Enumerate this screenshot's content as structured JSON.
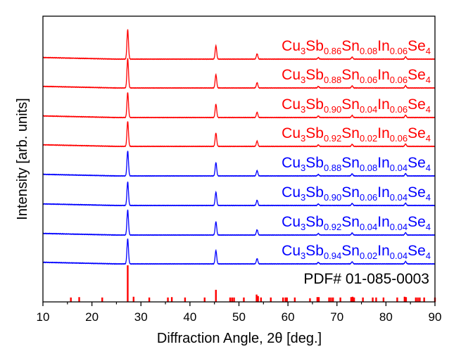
{
  "chart_data": {
    "type": "line",
    "title": "",
    "xlabel": "Diffraction Angle, 2θ [deg.]",
    "ylabel": "Intensity [arb. units]",
    "xlim": [
      10,
      90
    ],
    "xticks": [
      10,
      20,
      30,
      40,
      50,
      60,
      70,
      80,
      90
    ],
    "yticks": [],
    "grid": false,
    "legend": "inline labels right of each trace",
    "peaks_2theta": [
      27.3,
      45.3,
      53.7,
      66.2,
      73.1,
      84.0
    ],
    "peak_relative_intensity": [
      1.0,
      0.45,
      0.18,
      0.05,
      0.07,
      0.08
    ],
    "series": [
      {
        "name": "Cu3Sb0.86Sn0.08In0.06Se4",
        "color": "#ff0000",
        "parts": [
          [
            "Cu",
            ""
          ],
          [
            "3",
            "sub"
          ],
          [
            "Sb",
            ""
          ],
          [
            "0.86",
            "sub"
          ],
          [
            "Sn",
            ""
          ],
          [
            "0.08",
            "sub"
          ],
          [
            "In",
            ""
          ],
          [
            "0.06",
            "sub"
          ],
          [
            "Se",
            ""
          ],
          [
            "4",
            "sub"
          ]
        ],
        "main_peak_height": 1.0
      },
      {
        "name": "Cu3Sb0.88Sn0.06In0.06Se4",
        "color": "#ff0000",
        "parts": [
          [
            "Cu",
            ""
          ],
          [
            "3",
            "sub"
          ],
          [
            "Sb",
            ""
          ],
          [
            "0.88",
            "sub"
          ],
          [
            "Sn",
            ""
          ],
          [
            "0.06",
            "sub"
          ],
          [
            "In",
            ""
          ],
          [
            "0.06",
            "sub"
          ],
          [
            "Se",
            ""
          ],
          [
            "4",
            "sub"
          ]
        ],
        "main_peak_height": 1.0
      },
      {
        "name": "Cu3Sb0.90Sn0.04In0.06Se4",
        "color": "#ff0000",
        "parts": [
          [
            "Cu",
            ""
          ],
          [
            "3",
            "sub"
          ],
          [
            "Sb",
            ""
          ],
          [
            "0.90",
            "sub"
          ],
          [
            "Sn",
            ""
          ],
          [
            "0.04",
            "sub"
          ],
          [
            "In",
            ""
          ],
          [
            "0.06",
            "sub"
          ],
          [
            "Se",
            ""
          ],
          [
            "4",
            "sub"
          ]
        ],
        "main_peak_height": 0.85
      },
      {
        "name": "Cu3Sb0.92Sn0.02In0.06Se4",
        "color": "#ff0000",
        "parts": [
          [
            "Cu",
            ""
          ],
          [
            "3",
            "sub"
          ],
          [
            "Sb",
            ""
          ],
          [
            "0.92",
            "sub"
          ],
          [
            "Sn",
            ""
          ],
          [
            "0.02",
            "sub"
          ],
          [
            "In",
            ""
          ],
          [
            "0.06",
            "sub"
          ],
          [
            "Se",
            ""
          ],
          [
            "4",
            "sub"
          ]
        ],
        "main_peak_height": 0.85
      },
      {
        "name": "Cu3Sb0.88Sn0.08In0.04Se4",
        "color": "#0000ff",
        "parts": [
          [
            "Cu",
            ""
          ],
          [
            "3",
            "sub"
          ],
          [
            "Sb",
            ""
          ],
          [
            "0.88",
            "sub"
          ],
          [
            "Sn",
            ""
          ],
          [
            "0.08",
            "sub"
          ],
          [
            "In",
            ""
          ],
          [
            "0.04",
            "sub"
          ],
          [
            "Se",
            ""
          ],
          [
            "4",
            "sub"
          ]
        ],
        "main_peak_height": 0.85
      },
      {
        "name": "Cu3Sb0.90Sn0.06In0.04Se4",
        "color": "#0000ff",
        "parts": [
          [
            "Cu",
            ""
          ],
          [
            "3",
            "sub"
          ],
          [
            "Sb",
            ""
          ],
          [
            "0.90",
            "sub"
          ],
          [
            "Sn",
            ""
          ],
          [
            "0.06",
            "sub"
          ],
          [
            "In",
            ""
          ],
          [
            "0.04",
            "sub"
          ],
          [
            "Se",
            ""
          ],
          [
            "4",
            "sub"
          ]
        ],
        "main_peak_height": 0.8
      },
      {
        "name": "Cu3Sb0.92Sn0.04In0.04Se4",
        "color": "#0000ff",
        "parts": [
          [
            "Cu",
            ""
          ],
          [
            "3",
            "sub"
          ],
          [
            "Sb",
            ""
          ],
          [
            "0.92",
            "sub"
          ],
          [
            "Sn",
            ""
          ],
          [
            "0.04",
            "sub"
          ],
          [
            "In",
            ""
          ],
          [
            "0.04",
            "sub"
          ],
          [
            "Se",
            ""
          ],
          [
            "4",
            "sub"
          ]
        ],
        "main_peak_height": 0.85
      },
      {
        "name": "Cu3Sb0.94Sn0.02In0.04Se4",
        "color": "#0000ff",
        "parts": [
          [
            "Cu",
            ""
          ],
          [
            "3",
            "sub"
          ],
          [
            "Sb",
            ""
          ],
          [
            "0.94",
            "sub"
          ],
          [
            "Sn",
            ""
          ],
          [
            "0.02",
            "sub"
          ],
          [
            "In",
            ""
          ],
          [
            "0.04",
            "sub"
          ],
          [
            "Se",
            ""
          ],
          [
            "4",
            "sub"
          ]
        ],
        "main_peak_height": 0.85
      }
    ],
    "reference": {
      "label": "PDF# 01-085-0003",
      "color": "#ff0000",
      "lines_2theta": [
        15.7,
        17.4,
        22.1,
        27.3,
        28.5,
        31.7,
        35.5,
        36.3,
        39.0,
        43.0,
        45.3,
        48.2,
        48.6,
        49.0,
        51.0,
        53.6,
        53.9,
        54.5,
        56.5,
        59.0,
        59.5,
        59.8,
        61.4,
        64.5,
        66.0,
        66.3,
        68.4,
        68.8,
        69.2,
        70.7,
        72.9,
        73.2,
        73.5,
        75.3,
        77.3,
        78.0,
        79.5,
        82.3,
        83.8,
        84.1,
        86.1,
        86.5,
        86.9,
        87.8,
        90.0
      ],
      "relative_intensity": [
        0.12,
        0.13,
        0.12,
        1.0,
        0.14,
        0.12,
        0.12,
        0.13,
        0.12,
        0.12,
        0.33,
        0.12,
        0.12,
        0.12,
        0.12,
        0.2,
        0.16,
        0.12,
        0.12,
        0.12,
        0.12,
        0.12,
        0.12,
        0.1,
        0.13,
        0.13,
        0.12,
        0.12,
        0.12,
        0.12,
        0.13,
        0.14,
        0.12,
        0.12,
        0.12,
        0.12,
        0.12,
        0.12,
        0.14,
        0.13,
        0.12,
        0.12,
        0.12,
        0.12,
        0.12
      ]
    }
  }
}
